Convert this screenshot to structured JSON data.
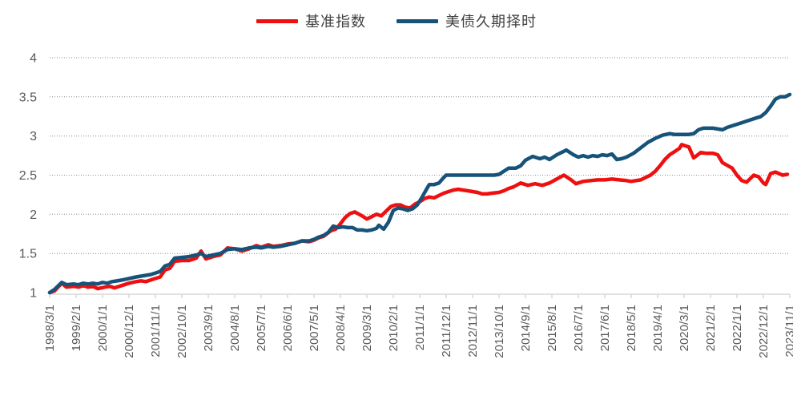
{
  "legend": {
    "items": [
      {
        "label": "基准指数",
        "color": "#ee1010"
      },
      {
        "label": "美债久期择时",
        "color": "#175379"
      }
    ]
  },
  "chart_data": {
    "type": "line",
    "title": "",
    "xlabel": "",
    "ylabel": "",
    "ylim": [
      1,
      4
    ],
    "y_ticks": [
      "1",
      "1.5",
      "2",
      "2.5",
      "3",
      "3.5",
      "4"
    ],
    "grid": "horizontal-dotted",
    "legend_position": "top-center",
    "x_unit": "months since 1998/3 (monthly series, labels every 11 months)",
    "x_range_months": [
      0,
      308
    ],
    "x_tick_labels": [
      "1998/3/1",
      "1999/2/1",
      "2000/1/1",
      "2000/12/1",
      "2001/11/1",
      "2002/10/1",
      "2003/9/1",
      "2004/8/1",
      "2005/7/1",
      "2006/6/1",
      "2007/5/1",
      "2008/4/1",
      "2009/3/1",
      "2010/2/1",
      "2011/1/1",
      "2011/12/1",
      "2012/11/1",
      "2013/10/1",
      "2014/9/1",
      "2015/8/1",
      "2016/7/1",
      "2017/6/1",
      "2018/5/1",
      "2019/4/1",
      "2020/3/1",
      "2021/2/1",
      "2022/1/1",
      "2022/12/1",
      "2023/11/1"
    ],
    "x_tick_months": [
      0,
      11,
      22,
      33,
      44,
      55,
      66,
      77,
      88,
      99,
      110,
      121,
      132,
      143,
      154,
      165,
      176,
      187,
      198,
      209,
      220,
      231,
      242,
      253,
      264,
      275,
      286,
      297,
      308
    ],
    "series": [
      {
        "name": "基准指数",
        "color": "#ee1010",
        "points": [
          [
            0,
            1.0
          ],
          [
            2,
            1.02
          ],
          [
            5,
            1.12
          ],
          [
            7,
            1.07
          ],
          [
            10,
            1.08
          ],
          [
            12,
            1.07
          ],
          [
            14,
            1.09
          ],
          [
            16,
            1.07
          ],
          [
            18,
            1.08
          ],
          [
            20,
            1.05
          ],
          [
            23,
            1.07
          ],
          [
            25,
            1.08
          ],
          [
            27,
            1.06
          ],
          [
            30,
            1.09
          ],
          [
            33,
            1.12
          ],
          [
            36,
            1.14
          ],
          [
            38,
            1.15
          ],
          [
            40,
            1.14
          ],
          [
            44,
            1.18
          ],
          [
            46,
            1.2
          ],
          [
            48,
            1.29
          ],
          [
            50,
            1.31
          ],
          [
            52,
            1.4
          ],
          [
            55,
            1.41
          ],
          [
            58,
            1.41
          ],
          [
            61,
            1.44
          ],
          [
            63,
            1.53
          ],
          [
            65,
            1.43
          ],
          [
            68,
            1.46
          ],
          [
            71,
            1.48
          ],
          [
            74,
            1.57
          ],
          [
            77,
            1.56
          ],
          [
            80,
            1.53
          ],
          [
            83,
            1.56
          ],
          [
            86,
            1.6
          ],
          [
            88,
            1.58
          ],
          [
            91,
            1.61
          ],
          [
            93,
            1.59
          ],
          [
            96,
            1.6
          ],
          [
            99,
            1.62
          ],
          [
            102,
            1.63
          ],
          [
            105,
            1.66
          ],
          [
            108,
            1.65
          ],
          [
            110,
            1.67
          ],
          [
            112,
            1.7
          ],
          [
            114,
            1.72
          ],
          [
            117,
            1.79
          ],
          [
            119,
            1.81
          ],
          [
            121,
            1.88
          ],
          [
            123,
            1.96
          ],
          [
            125,
            2.01
          ],
          [
            127,
            2.03
          ],
          [
            130,
            1.98
          ],
          [
            132,
            1.94
          ],
          [
            134,
            1.97
          ],
          [
            136,
            2.0
          ],
          [
            138,
            1.98
          ],
          [
            140,
            2.04
          ],
          [
            142,
            2.1
          ],
          [
            144,
            2.12
          ],
          [
            146,
            2.12
          ],
          [
            148,
            2.09
          ],
          [
            150,
            2.08
          ],
          [
            152,
            2.13
          ],
          [
            154,
            2.16
          ],
          [
            156,
            2.2
          ],
          [
            158,
            2.22
          ],
          [
            160,
            2.21
          ],
          [
            162,
            2.24
          ],
          [
            164,
            2.27
          ],
          [
            166,
            2.29
          ],
          [
            168,
            2.31
          ],
          [
            170,
            2.32
          ],
          [
            172,
            2.31
          ],
          [
            174,
            2.3
          ],
          [
            176,
            2.29
          ],
          [
            178,
            2.28
          ],
          [
            180,
            2.26
          ],
          [
            182,
            2.26
          ],
          [
            184,
            2.27
          ],
          [
            187,
            2.28
          ],
          [
            189,
            2.3
          ],
          [
            191,
            2.33
          ],
          [
            193,
            2.35
          ],
          [
            196,
            2.4
          ],
          [
            199,
            2.37
          ],
          [
            202,
            2.39
          ],
          [
            205,
            2.37
          ],
          [
            208,
            2.4
          ],
          [
            211,
            2.45
          ],
          [
            214,
            2.5
          ],
          [
            217,
            2.44
          ],
          [
            219,
            2.39
          ],
          [
            222,
            2.42
          ],
          [
            225,
            2.43
          ],
          [
            228,
            2.44
          ],
          [
            231,
            2.44
          ],
          [
            234,
            2.45
          ],
          [
            237,
            2.44
          ],
          [
            240,
            2.43
          ],
          [
            242,
            2.42
          ],
          [
            244,
            2.43
          ],
          [
            246,
            2.44
          ],
          [
            248,
            2.47
          ],
          [
            250,
            2.5
          ],
          [
            252,
            2.55
          ],
          [
            254,
            2.62
          ],
          [
            256,
            2.7
          ],
          [
            258,
            2.76
          ],
          [
            260,
            2.8
          ],
          [
            262,
            2.84
          ],
          [
            263,
            2.89
          ],
          [
            265,
            2.87
          ],
          [
            266,
            2.86
          ],
          [
            268,
            2.72
          ],
          [
            271,
            2.79
          ],
          [
            273,
            2.78
          ],
          [
            276,
            2.78
          ],
          [
            278,
            2.76
          ],
          [
            280,
            2.66
          ],
          [
            284,
            2.59
          ],
          [
            286,
            2.5
          ],
          [
            288,
            2.43
          ],
          [
            290,
            2.41
          ],
          [
            293,
            2.5
          ],
          [
            295,
            2.48
          ],
          [
            297,
            2.4
          ],
          [
            298,
            2.38
          ],
          [
            300,
            2.52
          ],
          [
            302,
            2.54
          ],
          [
            305,
            2.5
          ],
          [
            307,
            2.51
          ]
        ]
      },
      {
        "name": "美债久期择时",
        "color": "#175379",
        "points": [
          [
            0,
            1.0
          ],
          [
            2,
            1.04
          ],
          [
            5,
            1.13
          ],
          [
            7,
            1.1
          ],
          [
            10,
            1.11
          ],
          [
            12,
            1.1
          ],
          [
            14,
            1.12
          ],
          [
            16,
            1.11
          ],
          [
            18,
            1.12
          ],
          [
            20,
            1.11
          ],
          [
            22,
            1.13
          ],
          [
            24,
            1.12
          ],
          [
            26,
            1.14
          ],
          [
            28,
            1.15
          ],
          [
            30,
            1.16
          ],
          [
            33,
            1.18
          ],
          [
            36,
            1.2
          ],
          [
            38,
            1.21
          ],
          [
            40,
            1.22
          ],
          [
            42,
            1.23
          ],
          [
            44,
            1.25
          ],
          [
            46,
            1.27
          ],
          [
            48,
            1.34
          ],
          [
            50,
            1.36
          ],
          [
            52,
            1.44
          ],
          [
            55,
            1.45
          ],
          [
            58,
            1.46
          ],
          [
            61,
            1.48
          ],
          [
            63,
            1.5
          ],
          [
            65,
            1.46
          ],
          [
            68,
            1.48
          ],
          [
            71,
            1.5
          ],
          [
            74,
            1.55
          ],
          [
            77,
            1.56
          ],
          [
            80,
            1.55
          ],
          [
            83,
            1.57
          ],
          [
            86,
            1.58
          ],
          [
            88,
            1.57
          ],
          [
            91,
            1.59
          ],
          [
            93,
            1.58
          ],
          [
            96,
            1.59
          ],
          [
            99,
            1.61
          ],
          [
            102,
            1.63
          ],
          [
            105,
            1.66
          ],
          [
            108,
            1.66
          ],
          [
            110,
            1.68
          ],
          [
            112,
            1.71
          ],
          [
            114,
            1.73
          ],
          [
            116,
            1.77
          ],
          [
            118,
            1.85
          ],
          [
            120,
            1.83
          ],
          [
            122,
            1.84
          ],
          [
            124,
            1.83
          ],
          [
            126,
            1.83
          ],
          [
            128,
            1.8
          ],
          [
            130,
            1.8
          ],
          [
            132,
            1.79
          ],
          [
            134,
            1.8
          ],
          [
            136,
            1.82
          ],
          [
            137,
            1.86
          ],
          [
            139,
            1.81
          ],
          [
            141,
            1.9
          ],
          [
            143,
            2.05
          ],
          [
            145,
            2.08
          ],
          [
            147,
            2.07
          ],
          [
            149,
            2.05
          ],
          [
            151,
            2.07
          ],
          [
            153,
            2.12
          ],
          [
            155,
            2.22
          ],
          [
            157,
            2.33
          ],
          [
            158,
            2.38
          ],
          [
            160,
            2.38
          ],
          [
            162,
            2.4
          ],
          [
            164,
            2.47
          ],
          [
            165,
            2.5
          ],
          [
            170,
            2.5
          ],
          [
            175,
            2.5
          ],
          [
            180,
            2.5
          ],
          [
            185,
            2.5
          ],
          [
            187,
            2.51
          ],
          [
            189,
            2.55
          ],
          [
            191,
            2.59
          ],
          [
            194,
            2.59
          ],
          [
            196,
            2.62
          ],
          [
            198,
            2.69
          ],
          [
            201,
            2.74
          ],
          [
            204,
            2.71
          ],
          [
            206,
            2.73
          ],
          [
            208,
            2.7
          ],
          [
            211,
            2.76
          ],
          [
            213,
            2.79
          ],
          [
            215,
            2.82
          ],
          [
            218,
            2.76
          ],
          [
            220,
            2.73
          ],
          [
            222,
            2.75
          ],
          [
            224,
            2.73
          ],
          [
            226,
            2.75
          ],
          [
            228,
            2.74
          ],
          [
            230,
            2.76
          ],
          [
            232,
            2.75
          ],
          [
            234,
            2.77
          ],
          [
            236,
            2.7
          ],
          [
            238,
            2.71
          ],
          [
            240,
            2.73
          ],
          [
            243,
            2.78
          ],
          [
            246,
            2.85
          ],
          [
            249,
            2.92
          ],
          [
            252,
            2.97
          ],
          [
            255,
            3.01
          ],
          [
            258,
            3.03
          ],
          [
            260,
            3.02
          ],
          [
            262,
            3.02
          ],
          [
            264,
            3.02
          ],
          [
            266,
            3.02
          ],
          [
            268,
            3.03
          ],
          [
            270,
            3.08
          ],
          [
            272,
            3.1
          ],
          [
            274,
            3.1
          ],
          [
            276,
            3.1
          ],
          [
            278,
            3.09
          ],
          [
            280,
            3.08
          ],
          [
            282,
            3.11
          ],
          [
            285,
            3.14
          ],
          [
            288,
            3.17
          ],
          [
            291,
            3.2
          ],
          [
            294,
            3.23
          ],
          [
            296,
            3.25
          ],
          [
            298,
            3.3
          ],
          [
            300,
            3.38
          ],
          [
            302,
            3.47
          ],
          [
            304,
            3.5
          ],
          [
            306,
            3.5
          ],
          [
            308,
            3.53
          ]
        ]
      }
    ],
    "styles": {
      "gridline_color": "#8c8c8c",
      "axis_line_color": "#d9d9d9",
      "tick_color": "#d9d9d9",
      "axis_label_color": "#595959",
      "line_width": 4.5
    }
  }
}
